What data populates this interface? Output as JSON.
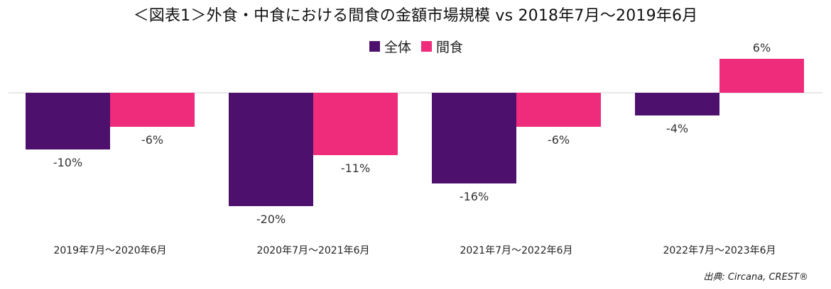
{
  "title": "＜図表1＞外食・中食における間食の金額市場規模 vs 2018年7月～2019年6月",
  "source": "出典: Circana, CREST®",
  "colors": {
    "overall": "#4d116d",
    "snack": "#ef2b7c",
    "axis": "#d0d0d0"
  },
  "chart_data": {
    "type": "bar",
    "title": "＜図表1＞外食・中食における間食の金額市場規模 vs 2018年7月～2019年6月",
    "categories": [
      "2019年7月～2020年6月",
      "2020年7月～2021年6月",
      "2021年7月～2022年6月",
      "2022年7月～2023年6月"
    ],
    "series": [
      {
        "name": "全体",
        "values": [
          -10,
          -20,
          -16,
          -4
        ],
        "labels": [
          "-10%",
          "-20%",
          "-16%",
          "-4%"
        ]
      },
      {
        "name": "間食",
        "values": [
          -6,
          -11,
          -6,
          6
        ],
        "labels": [
          "-6%",
          "-11%",
          "-6%",
          "6%"
        ]
      }
    ],
    "unit": "%",
    "legend_position": "top-center",
    "grid": false
  }
}
